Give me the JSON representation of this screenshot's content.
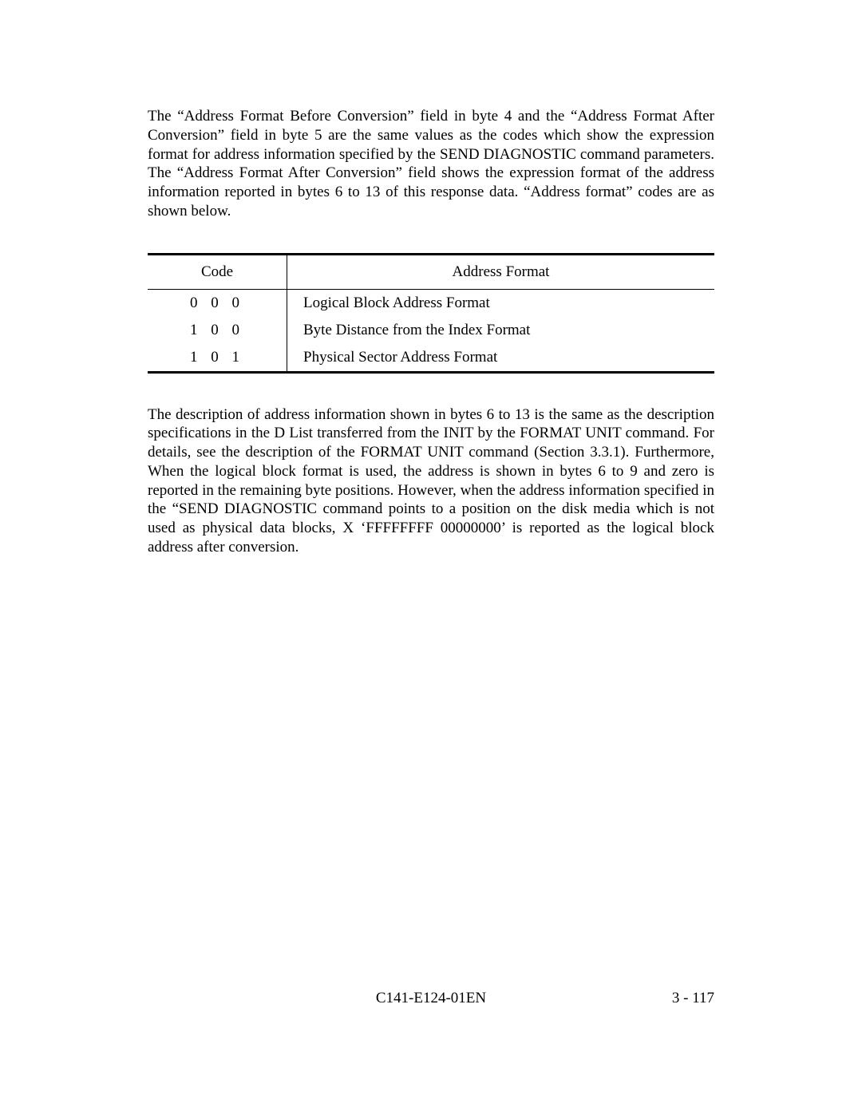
{
  "paragraph1": "The “Address Format Before Conversion” field in byte 4 and the “Address Format After Conversion” field in byte 5 are the same values as the codes which show the expression format for address information specified by the SEND DIAGNOSTIC command parameters.  The “Address Format After Conversion” field shows the expression format of the address information reported in bytes 6 to 13 of this response data.  “Address format” codes are as shown below.",
  "table": {
    "headers": {
      "code": "Code",
      "format": "Address Format"
    },
    "rows": [
      {
        "code": "0 0 0",
        "format": "Logical Block Address Format"
      },
      {
        "code": "1 0 0",
        "format": "Byte Distance from the Index Format"
      },
      {
        "code": "1 0 1",
        "format": "Physical Sector Address Format"
      }
    ]
  },
  "paragraph2": "The description of address information shown in bytes 6 to 13 is the same as the description specifications in the D List transferred from the INIT by the FORMAT UNIT command.  For details, see the description of the FORMAT UNIT command (Section 3.3.1).  Furthermore, When the logical block format is used, the address is shown in bytes 6 to 9 and zero is reported in the remaining byte positions.  However, when the address information specified in the “SEND DIAGNOSTIC command points to a position on the disk media which is not used as physical data blocks, X ‘FFFFFFFF 00000000’ is reported as the logical block address after conversion.",
  "footer": {
    "docid": "C141-E124-01EN",
    "page": "3 - 117"
  }
}
